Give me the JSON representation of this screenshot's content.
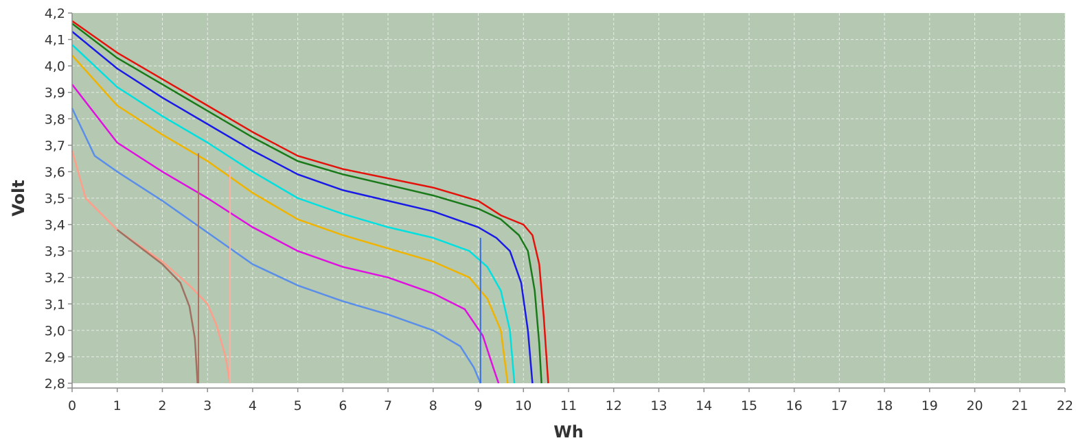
{
  "chart_data": {
    "type": "line",
    "title": "",
    "xlabel": "Wh",
    "ylabel": "Volt",
    "xlim": [
      0,
      22
    ],
    "ylim": [
      2.8,
      4.2
    ],
    "x_ticks": [
      "0",
      "1",
      "2",
      "3",
      "4",
      "5",
      "6",
      "7",
      "8",
      "9",
      "10",
      "11",
      "12",
      "13",
      "14",
      "15",
      "16",
      "17",
      "18",
      "19",
      "20",
      "21",
      "22"
    ],
    "y_ticks": [
      "2,8",
      "2,9",
      "3,0",
      "3,1",
      "3,2",
      "3,3",
      "3,4",
      "3,5",
      "3,6",
      "3,7",
      "3,8",
      "3,9",
      "4,0",
      "4,1",
      "4,2"
    ],
    "grid": true,
    "plot_background": "#b4c8b2",
    "series": [
      {
        "color": "#e3120b",
        "points": [
          [
            0,
            4.17
          ],
          [
            1,
            4.05
          ],
          [
            2,
            3.95
          ],
          [
            3,
            3.85
          ],
          [
            4,
            3.75
          ],
          [
            5,
            3.66
          ],
          [
            6,
            3.61
          ],
          [
            7,
            3.575
          ],
          [
            8,
            3.54
          ],
          [
            9,
            3.49
          ],
          [
            9.5,
            3.435
          ],
          [
            10,
            3.4
          ],
          [
            10.2,
            3.36
          ],
          [
            10.35,
            3.25
          ],
          [
            10.45,
            3.05
          ],
          [
            10.55,
            2.8
          ]
        ]
      },
      {
        "color": "#1a7a1a",
        "points": [
          [
            0,
            4.16
          ],
          [
            1,
            4.03
          ],
          [
            2,
            3.93
          ],
          [
            3,
            3.83
          ],
          [
            4,
            3.73
          ],
          [
            5,
            3.64
          ],
          [
            6,
            3.59
          ],
          [
            7,
            3.55
          ],
          [
            8,
            3.51
          ],
          [
            9,
            3.46
          ],
          [
            9.5,
            3.42
          ],
          [
            9.9,
            3.36
          ],
          [
            10.1,
            3.3
          ],
          [
            10.25,
            3.15
          ],
          [
            10.35,
            2.95
          ],
          [
            10.4,
            2.8
          ]
        ]
      },
      {
        "color": "#1a1ae6",
        "points": [
          [
            0,
            4.13
          ],
          [
            1,
            3.99
          ],
          [
            2,
            3.88
          ],
          [
            3,
            3.78
          ],
          [
            4,
            3.68
          ],
          [
            5,
            3.59
          ],
          [
            6,
            3.53
          ],
          [
            7,
            3.49
          ],
          [
            8,
            3.45
          ],
          [
            9,
            3.39
          ],
          [
            9.4,
            3.35
          ],
          [
            9.7,
            3.3
          ],
          [
            9.95,
            3.18
          ],
          [
            10.1,
            3.0
          ],
          [
            10.2,
            2.8
          ]
        ]
      },
      {
        "color": "#00e0e0",
        "points": [
          [
            0,
            4.08
          ],
          [
            1,
            3.92
          ],
          [
            2,
            3.81
          ],
          [
            3,
            3.71
          ],
          [
            4,
            3.6
          ],
          [
            5,
            3.5
          ],
          [
            6,
            3.44
          ],
          [
            7,
            3.39
          ],
          [
            8,
            3.35
          ],
          [
            8.8,
            3.3
          ],
          [
            9.2,
            3.24
          ],
          [
            9.5,
            3.15
          ],
          [
            9.7,
            3.0
          ],
          [
            9.8,
            2.8
          ]
        ]
      },
      {
        "color": "#f0b400",
        "points": [
          [
            0,
            4.04
          ],
          [
            1,
            3.85
          ],
          [
            2,
            3.74
          ],
          [
            3,
            3.64
          ],
          [
            4,
            3.52
          ],
          [
            5,
            3.42
          ],
          [
            6,
            3.36
          ],
          [
            7,
            3.31
          ],
          [
            8,
            3.26
          ],
          [
            8.8,
            3.2
          ],
          [
            9.2,
            3.12
          ],
          [
            9.5,
            3.0
          ],
          [
            9.65,
            2.8
          ]
        ]
      },
      {
        "color": "#e010e0",
        "points": [
          [
            0,
            3.93
          ],
          [
            1,
            3.71
          ],
          [
            2,
            3.6
          ],
          [
            3,
            3.5
          ],
          [
            4,
            3.39
          ],
          [
            5,
            3.3
          ],
          [
            6,
            3.24
          ],
          [
            7,
            3.2
          ],
          [
            8,
            3.14
          ],
          [
            8.7,
            3.08
          ],
          [
            9.1,
            2.98
          ],
          [
            9.35,
            2.85
          ],
          [
            9.45,
            2.8
          ]
        ]
      },
      {
        "color": "#5a8ee8",
        "points": [
          [
            0,
            3.84
          ],
          [
            0.5,
            3.66
          ],
          [
            1,
            3.6
          ],
          [
            2,
            3.49
          ],
          [
            3,
            3.37
          ],
          [
            4,
            3.25
          ],
          [
            5,
            3.17
          ],
          [
            6,
            3.11
          ],
          [
            7,
            3.06
          ],
          [
            8,
            3.0
          ],
          [
            8.6,
            2.94
          ],
          [
            8.9,
            2.86
          ],
          [
            9.05,
            2.8
          ]
        ]
      },
      {
        "color": "#ff9e8a",
        "points": [
          [
            0,
            3.68
          ],
          [
            0.3,
            3.5
          ],
          [
            1,
            3.38
          ],
          [
            2,
            3.26
          ],
          [
            2.6,
            3.17
          ],
          [
            3,
            3.1
          ],
          [
            3.2,
            3.02
          ],
          [
            3.4,
            2.9
          ],
          [
            3.5,
            2.8
          ]
        ]
      },
      {
        "color": "#a07060",
        "points": [
          [
            1,
            3.38
          ],
          [
            2,
            3.25
          ],
          [
            2.4,
            3.18
          ],
          [
            2.6,
            3.09
          ],
          [
            2.72,
            2.97
          ],
          [
            2.78,
            2.8
          ]
        ]
      }
    ],
    "vertical_markers": [
      {
        "color": "#b07060",
        "x": 2.8,
        "y_top": 3.67
      },
      {
        "color": "#ffb0a0",
        "x": 3.5,
        "y_top": 3.62
      },
      {
        "color": "#3a6ee8",
        "x": 9.05,
        "y_top": 3.35
      }
    ]
  }
}
